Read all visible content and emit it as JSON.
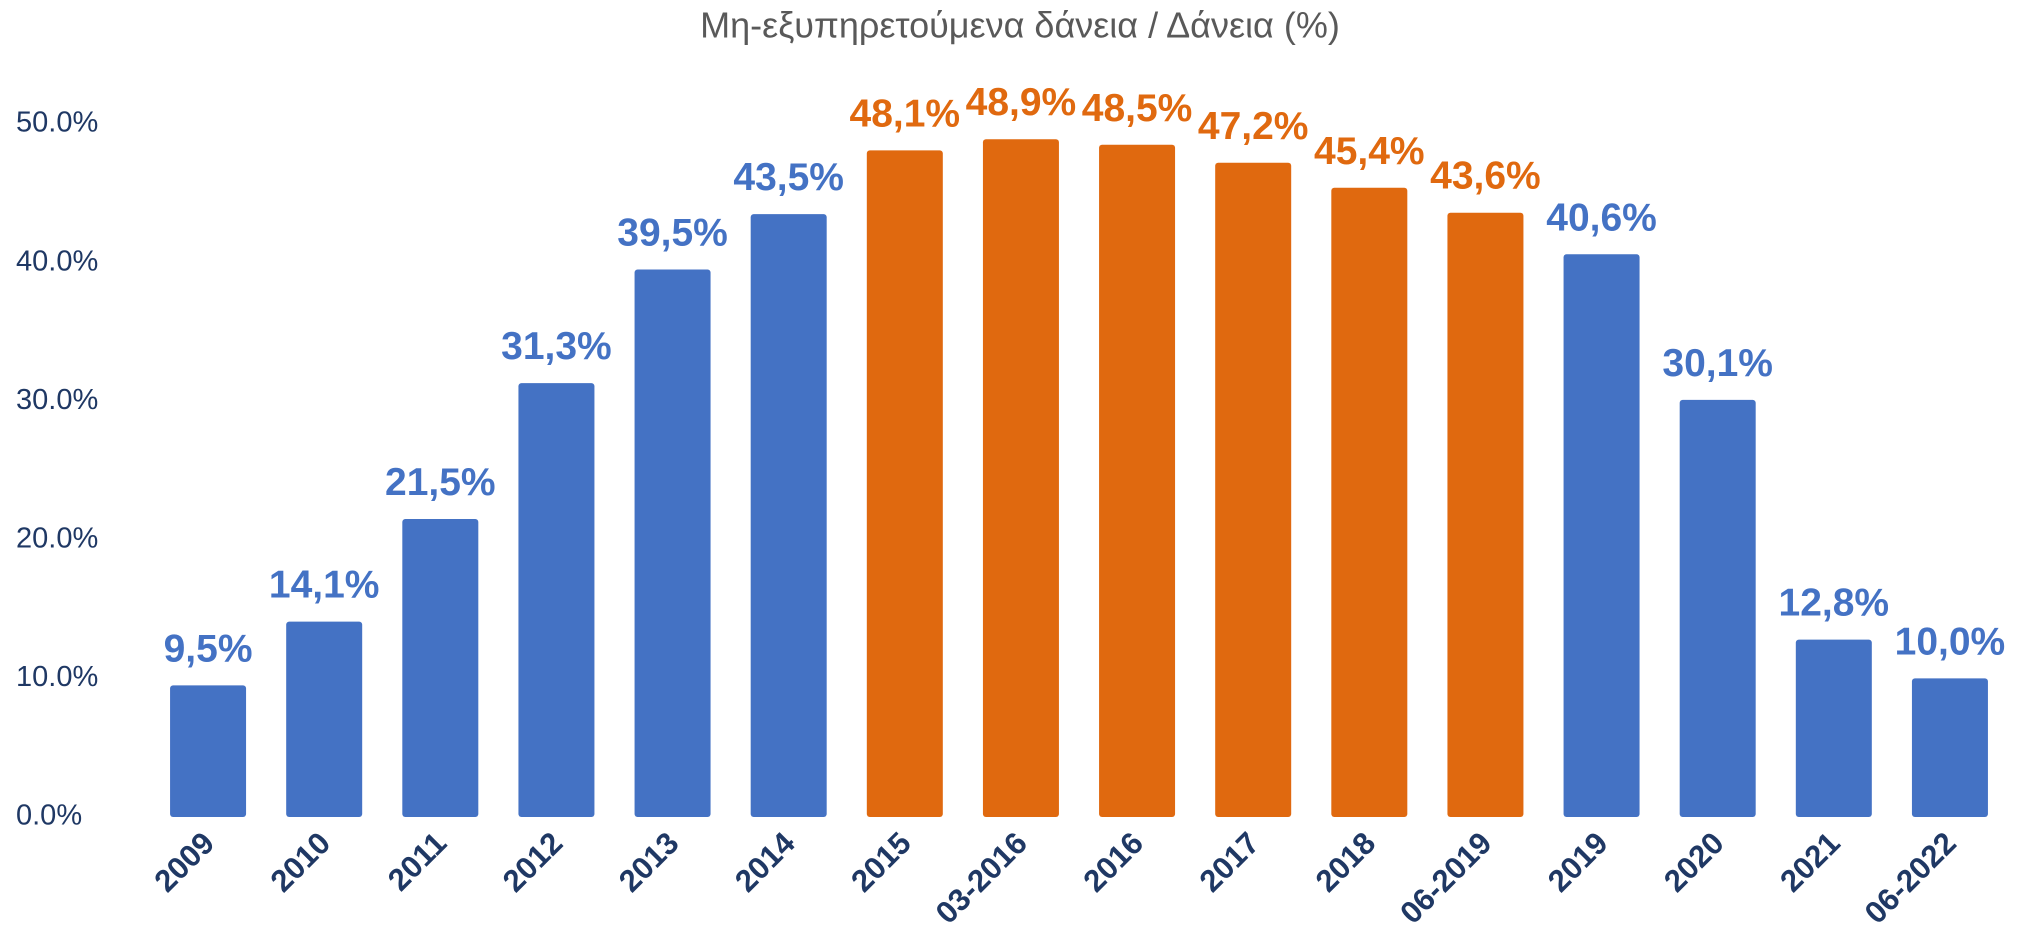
{
  "chart_data": {
    "type": "bar",
    "title": "Μη-εξυπηρετούμενα δάνεια / Δάνεια (%)",
    "categories": [
      "2009",
      "2010",
      "2011",
      "2012",
      "2013",
      "2014",
      "2015",
      "03-2016",
      "2016",
      "2017",
      "2018",
      "06-2019",
      "2019",
      "2020",
      "2021",
      "06-2022"
    ],
    "values": [
      9.5,
      14.1,
      21.5,
      31.3,
      39.5,
      43.5,
      48.1,
      48.9,
      48.5,
      47.2,
      45.4,
      43.6,
      40.6,
      30.1,
      12.8,
      10.0
    ],
    "value_labels": [
      "9,5%",
      "14,1%",
      "21,5%",
      "31,3%",
      "39,5%",
      "43,5%",
      "48,1%",
      "48,9%",
      "48,5%",
      "47,2%",
      "45,4%",
      "43,6%",
      "40,6%",
      "30,1%",
      "12,8%",
      "10,0%"
    ],
    "colors": [
      "#4472c4",
      "#4472c4",
      "#4472c4",
      "#4472c4",
      "#4472c4",
      "#4472c4",
      "#e0690f",
      "#e0690f",
      "#e0690f",
      "#e0690f",
      "#e0690f",
      "#e0690f",
      "#4472c4",
      "#4472c4",
      "#4472c4",
      "#4472c4"
    ],
    "ylim": [
      0,
      50
    ],
    "yticks": [
      {
        "value": 0,
        "label": "0.0%"
      },
      {
        "value": 10,
        "label": "10.0%"
      },
      {
        "value": 20,
        "label": "20.0%"
      },
      {
        "value": 30,
        "label": "30.0%"
      },
      {
        "value": 40,
        "label": "40.0%"
      },
      {
        "value": 50,
        "label": "50.0%"
      }
    ],
    "grid": false
  }
}
